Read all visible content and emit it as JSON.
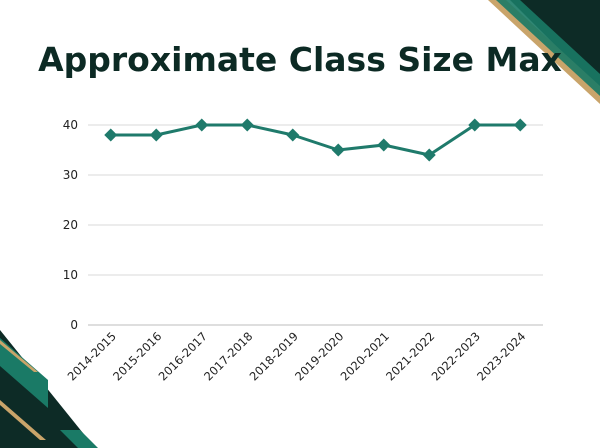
{
  "chart_data": {
    "type": "line",
    "title": "Approximate Class Size Max",
    "categories": [
      "2014-2015",
      "2015-2016",
      "2016-2017",
      "2017-2018",
      "2018-2019",
      "2019-2020",
      "2020-2021",
      "2021-2022",
      "2022-2023",
      "2023-2024"
    ],
    "series": [
      {
        "values": [
          38,
          38,
          40,
          40,
          38,
          35,
          36,
          34,
          40,
          40
        ]
      }
    ],
    "yticks": [
      0,
      10,
      20,
      30,
      40
    ],
    "ylim": [
      0,
      45
    ],
    "xlabel": "",
    "ylabel": "",
    "grid": true,
    "colors": {
      "line": "#1f7a6b",
      "marker": "#1f7a6b",
      "grid": "#d9d9d9",
      "title": "#0c2a24",
      "deco_dark": "#0d2b26",
      "deco_teal": "#1a7a66",
      "deco_gold": "#c9a46a"
    }
  }
}
